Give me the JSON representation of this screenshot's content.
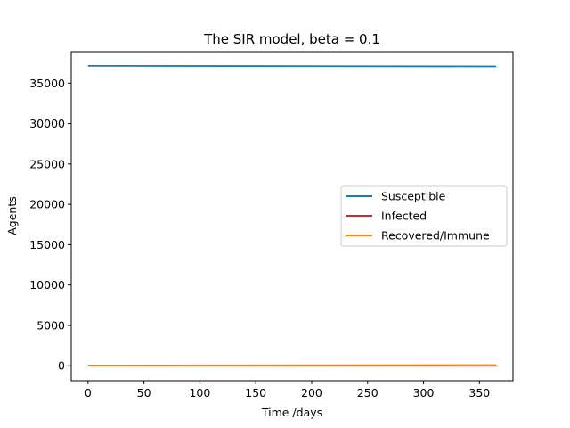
{
  "chart_data": {
    "type": "line",
    "title": "The SIR model, beta = 0.1",
    "xlabel": "Time /days",
    "ylabel": "Agents",
    "xlim": [
      -15,
      380
    ],
    "ylim": [
      -1850,
      38900
    ],
    "xticks": [
      0,
      50,
      100,
      150,
      200,
      250,
      300,
      350
    ],
    "yticks": [
      0,
      5000,
      10000,
      15000,
      20000,
      25000,
      30000,
      35000
    ],
    "grid": false,
    "legend_position": "center-right",
    "series": [
      {
        "name": "Susceptible",
        "color": "#1f77b4",
        "x": [
          0,
          365
        ],
        "y": [
          37150,
          37080
        ]
      },
      {
        "name": "Infected",
        "color": "#d62728",
        "x": [
          0,
          365
        ],
        "y": [
          20,
          20
        ]
      },
      {
        "name": "Recovered/Immune",
        "color": "#ff7f0e",
        "x": [
          0,
          365
        ],
        "y": [
          30,
          80
        ]
      }
    ]
  }
}
